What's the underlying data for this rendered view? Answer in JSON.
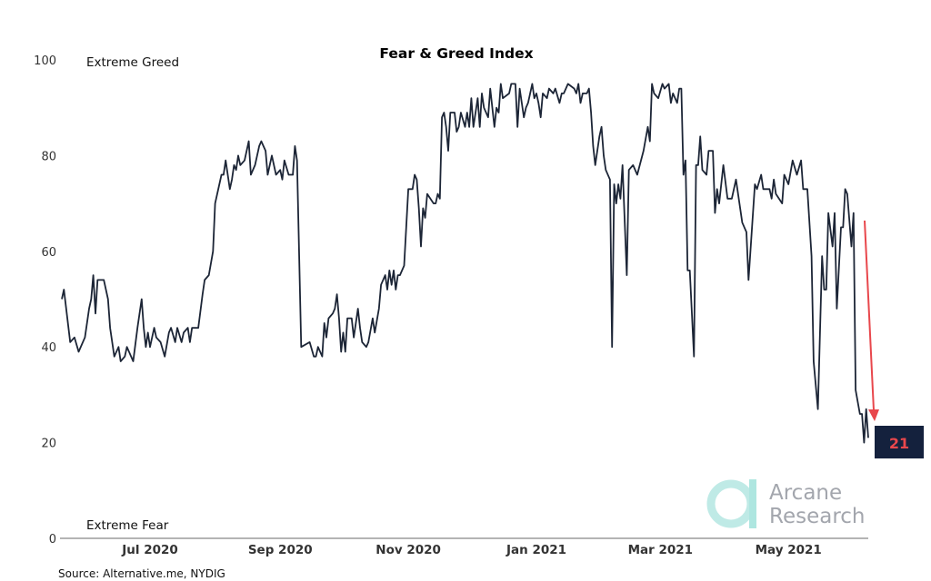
{
  "chart_data": {
    "type": "line",
    "title": "Fear & Greed Index",
    "xlabel": "",
    "ylabel": "",
    "ylim": [
      0,
      100
    ],
    "xlim": [
      "2020-05-20",
      "2021-06-08"
    ],
    "yticks": [
      0,
      20,
      40,
      60,
      80,
      100
    ],
    "xticks": [
      {
        "date": "2020-07-01",
        "label": "Jul 2020"
      },
      {
        "date": "2020-09-01",
        "label": "Sep 2020"
      },
      {
        "date": "2020-11-01",
        "label": "Nov 2020"
      },
      {
        "date": "2021-01-01",
        "label": "Jan 2021"
      },
      {
        "date": "2021-03-01",
        "label": "Mar 2021"
      },
      {
        "date": "2021-05-01",
        "label": "May 2021"
      }
    ],
    "grid": false,
    "line_color": "#1c2536",
    "annotations": {
      "top_zone": "Extreme Greed",
      "bottom_zone": "Extreme Fear",
      "latest_value": "21",
      "latest_color": "#e8474c",
      "badge_color": "#14213d",
      "arrow_color": "#e8474c"
    },
    "source": "Source: Alternative.me, NYDIG",
    "series": [
      {
        "points": [
          [
            "2020-05-20",
            50
          ],
          [
            "2020-05-21",
            52
          ],
          [
            "2020-05-24",
            41
          ],
          [
            "2020-05-26",
            42
          ],
          [
            "2020-05-28",
            39
          ],
          [
            "2020-05-31",
            42
          ],
          [
            "2020-06-02",
            48
          ],
          [
            "2020-06-03",
            50
          ],
          [
            "2020-06-04",
            55
          ],
          [
            "2020-06-05",
            47
          ],
          [
            "2020-06-06",
            54
          ],
          [
            "2020-06-09",
            54
          ],
          [
            "2020-06-11",
            50
          ],
          [
            "2020-06-12",
            44
          ],
          [
            "2020-06-14",
            38
          ],
          [
            "2020-06-16",
            40
          ],
          [
            "2020-06-17",
            37
          ],
          [
            "2020-06-19",
            38
          ],
          [
            "2020-06-20",
            40
          ],
          [
            "2020-06-23",
            37
          ],
          [
            "2020-06-25",
            44
          ],
          [
            "2020-06-27",
            50
          ],
          [
            "2020-06-28",
            44
          ],
          [
            "2020-06-29",
            40
          ],
          [
            "2020-06-30",
            43
          ],
          [
            "2020-07-01",
            40
          ],
          [
            "2020-07-03",
            44
          ],
          [
            "2020-07-04",
            42
          ],
          [
            "2020-07-06",
            41
          ],
          [
            "2020-07-08",
            38
          ],
          [
            "2020-07-10",
            43
          ],
          [
            "2020-07-11",
            44
          ],
          [
            "2020-07-13",
            41
          ],
          [
            "2020-07-14",
            44
          ],
          [
            "2020-07-16",
            41
          ],
          [
            "2020-07-17",
            43
          ],
          [
            "2020-07-19",
            44
          ],
          [
            "2020-07-20",
            41
          ],
          [
            "2020-07-21",
            44
          ],
          [
            "2020-07-24",
            44
          ],
          [
            "2020-07-26",
            51
          ],
          [
            "2020-07-27",
            54
          ],
          [
            "2020-07-29",
            55
          ],
          [
            "2020-07-31",
            60
          ],
          [
            "2020-08-01",
            70
          ],
          [
            "2020-08-04",
            76
          ],
          [
            "2020-08-05",
            76
          ],
          [
            "2020-08-06",
            79
          ],
          [
            "2020-08-08",
            73
          ],
          [
            "2020-08-09",
            75
          ],
          [
            "2020-08-10",
            78
          ],
          [
            "2020-08-11",
            77
          ],
          [
            "2020-08-12",
            80
          ],
          [
            "2020-08-13",
            78
          ],
          [
            "2020-08-15",
            79
          ],
          [
            "2020-08-17",
            83
          ],
          [
            "2020-08-18",
            76
          ],
          [
            "2020-08-20",
            78
          ],
          [
            "2020-08-22",
            82
          ],
          [
            "2020-08-23",
            83
          ],
          [
            "2020-08-25",
            81
          ],
          [
            "2020-08-26",
            76
          ],
          [
            "2020-08-28",
            80
          ],
          [
            "2020-08-29",
            78
          ],
          [
            "2020-08-30",
            76
          ],
          [
            "2020-09-01",
            77
          ],
          [
            "2020-09-02",
            75
          ],
          [
            "2020-09-03",
            79
          ],
          [
            "2020-09-05",
            76
          ],
          [
            "2020-09-07",
            76
          ],
          [
            "2020-09-08",
            82
          ],
          [
            "2020-09-09",
            79
          ],
          [
            "2020-09-11",
            40
          ],
          [
            "2020-09-15",
            41
          ],
          [
            "2020-09-17",
            38
          ],
          [
            "2020-09-18",
            38
          ],
          [
            "2020-09-19",
            40
          ],
          [
            "2020-09-21",
            38
          ],
          [
            "2020-09-22",
            45
          ],
          [
            "2020-09-23",
            42
          ],
          [
            "2020-09-24",
            46
          ],
          [
            "2020-09-26",
            47
          ],
          [
            "2020-09-27",
            48
          ],
          [
            "2020-09-28",
            51
          ],
          [
            "2020-09-29",
            46
          ],
          [
            "2020-09-30",
            39
          ],
          [
            "2020-10-01",
            43
          ],
          [
            "2020-10-02",
            39
          ],
          [
            "2020-10-03",
            46
          ],
          [
            "2020-10-05",
            46
          ],
          [
            "2020-10-06",
            42
          ],
          [
            "2020-10-08",
            48
          ],
          [
            "2020-10-09",
            44
          ],
          [
            "2020-10-10",
            41
          ],
          [
            "2020-10-12",
            40
          ],
          [
            "2020-10-13",
            41
          ],
          [
            "2020-10-15",
            46
          ],
          [
            "2020-10-16",
            43
          ],
          [
            "2020-10-18",
            48
          ],
          [
            "2020-10-19",
            53
          ],
          [
            "2020-10-21",
            55
          ],
          [
            "2020-10-22",
            52
          ],
          [
            "2020-10-23",
            56
          ],
          [
            "2020-10-24",
            53
          ],
          [
            "2020-10-25",
            56
          ],
          [
            "2020-10-26",
            52
          ],
          [
            "2020-10-27",
            55
          ],
          [
            "2020-10-28",
            55
          ],
          [
            "2020-10-30",
            57
          ],
          [
            "2020-10-31",
            65
          ],
          [
            "2020-11-01",
            73
          ],
          [
            "2020-11-03",
            73
          ],
          [
            "2020-11-04",
            76
          ],
          [
            "2020-11-05",
            75
          ],
          [
            "2020-11-06",
            69
          ],
          [
            "2020-11-07",
            61
          ],
          [
            "2020-11-08",
            69
          ],
          [
            "2020-11-09",
            67
          ],
          [
            "2020-11-10",
            72
          ],
          [
            "2020-11-13",
            70
          ],
          [
            "2020-11-14",
            70
          ],
          [
            "2020-11-15",
            72
          ],
          [
            "2020-11-16",
            71
          ],
          [
            "2020-11-17",
            88
          ],
          [
            "2020-11-18",
            89
          ],
          [
            "2020-11-19",
            86
          ],
          [
            "2020-11-20",
            81
          ],
          [
            "2020-11-21",
            89
          ],
          [
            "2020-11-23",
            89
          ],
          [
            "2020-11-24",
            85
          ],
          [
            "2020-11-25",
            86
          ],
          [
            "2020-11-26",
            89
          ],
          [
            "2020-11-28",
            86
          ],
          [
            "2020-11-29",
            89
          ],
          [
            "2020-11-30",
            86
          ],
          [
            "2020-12-01",
            92
          ],
          [
            "2020-12-02",
            86
          ],
          [
            "2020-12-04",
            92
          ],
          [
            "2020-12-05",
            86
          ],
          [
            "2020-12-06",
            93
          ],
          [
            "2020-12-07",
            90
          ],
          [
            "2020-12-09",
            88
          ],
          [
            "2020-12-10",
            94
          ],
          [
            "2020-12-12",
            86
          ],
          [
            "2020-12-13",
            90
          ],
          [
            "2020-12-14",
            89
          ],
          [
            "2020-12-15",
            95
          ],
          [
            "2020-12-16",
            92
          ],
          [
            "2020-12-19",
            93
          ],
          [
            "2020-12-20",
            95
          ],
          [
            "2020-12-22",
            95
          ],
          [
            "2020-12-23",
            86
          ],
          [
            "2020-12-24",
            94
          ],
          [
            "2020-12-26",
            88
          ],
          [
            "2020-12-27",
            90
          ],
          [
            "2020-12-28",
            91
          ],
          [
            "2020-12-30",
            95
          ],
          [
            "2020-12-31",
            92
          ],
          [
            "2021-01-01",
            93
          ],
          [
            "2021-01-02",
            91
          ],
          [
            "2021-01-03",
            88
          ],
          [
            "2021-01-04",
            93
          ],
          [
            "2021-01-06",
            92
          ],
          [
            "2021-01-07",
            94
          ],
          [
            "2021-01-09",
            93
          ],
          [
            "2021-01-10",
            94
          ],
          [
            "2021-01-12",
            91
          ],
          [
            "2021-01-13",
            93
          ],
          [
            "2021-01-14",
            93
          ],
          [
            "2021-01-16",
            95
          ],
          [
            "2021-01-19",
            94
          ],
          [
            "2021-01-20",
            93
          ],
          [
            "2021-01-21",
            95
          ],
          [
            "2021-01-22",
            91
          ],
          [
            "2021-01-23",
            93
          ],
          [
            "2021-01-25",
            93
          ],
          [
            "2021-01-26",
            94
          ],
          [
            "2021-01-27",
            89
          ],
          [
            "2021-01-28",
            82
          ],
          [
            "2021-01-29",
            78
          ],
          [
            "2021-01-31",
            84
          ],
          [
            "2021-02-01",
            86
          ],
          [
            "2021-02-02",
            80
          ],
          [
            "2021-02-03",
            77
          ],
          [
            "2021-02-05",
            75
          ],
          [
            "2021-02-06",
            40
          ],
          [
            "2021-02-07",
            74
          ],
          [
            "2021-02-08",
            70
          ],
          [
            "2021-02-09",
            74
          ],
          [
            "2021-02-10",
            71
          ],
          [
            "2021-02-11",
            78
          ],
          [
            "2021-02-13",
            55
          ],
          [
            "2021-02-14",
            77
          ],
          [
            "2021-02-16",
            78
          ],
          [
            "2021-02-18",
            76
          ],
          [
            "2021-02-21",
            81
          ],
          [
            "2021-02-23",
            86
          ],
          [
            "2021-02-24",
            83
          ],
          [
            "2021-02-25",
            95
          ],
          [
            "2021-02-26",
            93
          ],
          [
            "2021-02-28",
            92
          ],
          [
            "2021-03-02",
            95
          ],
          [
            "2021-03-03",
            94
          ],
          [
            "2021-03-05",
            95
          ],
          [
            "2021-03-06",
            91
          ],
          [
            "2021-03-07",
            93
          ],
          [
            "2021-03-09",
            91
          ],
          [
            "2021-03-10",
            94
          ],
          [
            "2021-03-11",
            94
          ],
          [
            "2021-03-12",
            76
          ],
          [
            "2021-03-13",
            79
          ],
          [
            "2021-03-14",
            56
          ],
          [
            "2021-03-15",
            56
          ],
          [
            "2021-03-17",
            38
          ],
          [
            "2021-03-18",
            78
          ],
          [
            "2021-03-19",
            78
          ],
          [
            "2021-03-20",
            84
          ],
          [
            "2021-03-21",
            77
          ],
          [
            "2021-03-23",
            76
          ],
          [
            "2021-03-24",
            81
          ],
          [
            "2021-03-26",
            81
          ],
          [
            "2021-03-27",
            68
          ],
          [
            "2021-03-28",
            73
          ],
          [
            "2021-03-29",
            70
          ],
          [
            "2021-03-31",
            78
          ],
          [
            "2021-04-02",
            71
          ],
          [
            "2021-04-04",
            71
          ],
          [
            "2021-04-06",
            75
          ],
          [
            "2021-04-09",
            66
          ],
          [
            "2021-04-11",
            64
          ],
          [
            "2021-04-12",
            54
          ],
          [
            "2021-04-15",
            74
          ],
          [
            "2021-04-16",
            73
          ],
          [
            "2021-04-18",
            76
          ],
          [
            "2021-04-19",
            73
          ],
          [
            "2021-04-22",
            73
          ],
          [
            "2021-04-23",
            71
          ],
          [
            "2021-04-24",
            75
          ],
          [
            "2021-04-25",
            72
          ],
          [
            "2021-04-28",
            70
          ],
          [
            "2021-04-29",
            76
          ],
          [
            "2021-05-01",
            74
          ],
          [
            "2021-05-03",
            79
          ],
          [
            "2021-05-05",
            76
          ],
          [
            "2021-05-07",
            79
          ],
          [
            "2021-05-08",
            73
          ],
          [
            "2021-05-10",
            73
          ],
          [
            "2021-05-12",
            59
          ],
          [
            "2021-05-13",
            37
          ],
          [
            "2021-05-15",
            27
          ],
          [
            "2021-05-17",
            59
          ],
          [
            "2021-05-18",
            52
          ],
          [
            "2021-05-19",
            52
          ],
          [
            "2021-05-20",
            68
          ],
          [
            "2021-05-22",
            61
          ],
          [
            "2021-05-23",
            68
          ],
          [
            "2021-05-24",
            48
          ],
          [
            "2021-05-26",
            65
          ],
          [
            "2021-05-27",
            65
          ],
          [
            "2021-05-28",
            73
          ],
          [
            "2021-05-29",
            72
          ],
          [
            "2021-05-31",
            61
          ],
          [
            "2021-06-01",
            68
          ],
          [
            "2021-06-02",
            31
          ],
          [
            "2021-06-04",
            26
          ],
          [
            "2021-06-05",
            26
          ],
          [
            "2021-06-06",
            20
          ],
          [
            "2021-06-07",
            27
          ],
          [
            "2021-06-08",
            21
          ]
        ]
      }
    ]
  },
  "logo": {
    "line1": "Arcane",
    "line2": "Research",
    "color": "#a8e4df"
  }
}
